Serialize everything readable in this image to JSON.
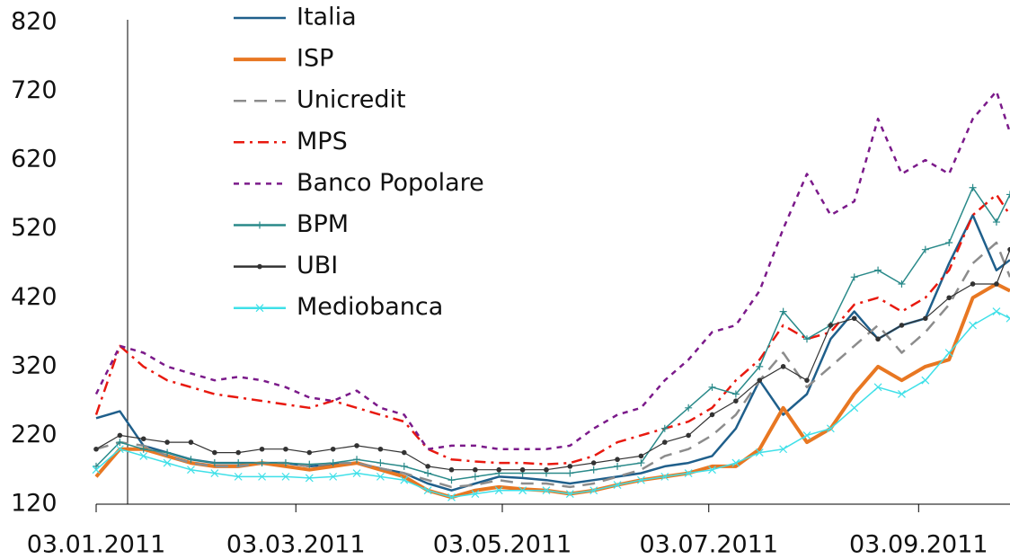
{
  "chart_data": {
    "type": "line",
    "x": [
      "03.01.2011",
      "10.01.2011",
      "17.01.2011",
      "24.01.2011",
      "31.01.2011",
      "07.02.2011",
      "14.02.2011",
      "21.02.2011",
      "28.02.2011",
      "07.03.2011",
      "14.03.2011",
      "21.03.2011",
      "28.03.2011",
      "04.04.2011",
      "11.04.2011",
      "18.04.2011",
      "25.04.2011",
      "02.05.2011",
      "09.05.2011",
      "16.05.2011",
      "23.05.2011",
      "30.05.2011",
      "06.06.2011",
      "13.06.2011",
      "20.06.2011",
      "27.06.2011",
      "04.07.2011",
      "11.07.2011",
      "18.07.2011",
      "25.07.2011",
      "01.08.2011",
      "08.08.2011",
      "15.08.2011",
      "22.08.2011",
      "29.08.2011",
      "05.09.2011",
      "12.09.2011",
      "19.09.2011",
      "26.09.2011",
      "30.09.2011"
    ],
    "xlim": [
      "03.01.2011",
      "30.09.2011"
    ],
    "xticks": [
      "03.01.2011",
      "03.03.2011",
      "03.05.2011",
      "03.07.2011",
      "03.09.2011"
    ],
    "ylim": [
      120,
      820
    ],
    "yticks": [
      120,
      220,
      320,
      420,
      520,
      620,
      720,
      820
    ],
    "legend": "top",
    "series": [
      {
        "name": "Italia",
        "color": "#1f5f8b",
        "style": "solid",
        "values": [
          245,
          255,
          205,
          195,
          185,
          180,
          180,
          180,
          180,
          175,
          178,
          180,
          172,
          165,
          150,
          140,
          150,
          160,
          158,
          155,
          150,
          155,
          160,
          165,
          175,
          180,
          190,
          230,
          300,
          250,
          280,
          360,
          400,
          360,
          380,
          390,
          470,
          540,
          460,
          475
        ]
      },
      {
        "name": "ISP",
        "color": "#e87722",
        "style": "solid",
        "values": [
          160,
          200,
          200,
          190,
          180,
          175,
          175,
          180,
          175,
          170,
          175,
          180,
          170,
          160,
          140,
          130,
          140,
          145,
          142,
          140,
          135,
          140,
          148,
          155,
          160,
          165,
          175,
          175,
          200,
          260,
          210,
          230,
          280,
          320,
          300,
          320,
          330,
          420,
          440,
          430
        ]
      },
      {
        "name": "Unicredit",
        "color": "#8c8c8c",
        "style": "dashed",
        "values": [
          200,
          210,
          205,
          190,
          180,
          175,
          175,
          180,
          180,
          175,
          180,
          180,
          172,
          165,
          155,
          145,
          148,
          155,
          150,
          150,
          145,
          150,
          160,
          170,
          190,
          200,
          220,
          250,
          300,
          340,
          290,
          320,
          350,
          380,
          340,
          370,
          410,
          470,
          500,
          450
        ]
      },
      {
        "name": "MPS",
        "color": "#e8190f",
        "style": "dash-dot",
        "values": [
          250,
          350,
          320,
          300,
          290,
          280,
          275,
          270,
          265,
          260,
          270,
          260,
          250,
          240,
          200,
          185,
          182,
          180,
          180,
          178,
          180,
          190,
          210,
          220,
          230,
          240,
          260,
          300,
          330,
          380,
          360,
          370,
          410,
          420,
          400,
          420,
          460,
          540,
          570,
          540
        ]
      },
      {
        "name": "Banco Popolare",
        "color": "#7b1a8a",
        "style": "dotted",
        "values": [
          280,
          350,
          340,
          320,
          310,
          300,
          305,
          300,
          290,
          275,
          270,
          285,
          260,
          250,
          200,
          205,
          205,
          200,
          200,
          200,
          205,
          230,
          250,
          260,
          300,
          330,
          370,
          380,
          430,
          520,
          600,
          540,
          560,
          680,
          600,
          620,
          600,
          680,
          720,
          660
        ]
      },
      {
        "name": "BPM",
        "color": "#2a8a8a",
        "style": "solid",
        "marker": "plus",
        "values": [
          175,
          210,
          200,
          195,
          185,
          180,
          180,
          180,
          180,
          178,
          180,
          185,
          180,
          175,
          165,
          155,
          160,
          165,
          165,
          165,
          165,
          170,
          175,
          180,
          230,
          260,
          290,
          280,
          320,
          400,
          360,
          380,
          450,
          460,
          440,
          490,
          500,
          580,
          530,
          570
        ]
      },
      {
        "name": "UBI",
        "color": "#333333",
        "style": "solid",
        "marker": "dot",
        "values": [
          200,
          220,
          215,
          210,
          210,
          195,
          195,
          200,
          200,
          195,
          200,
          205,
          200,
          195,
          175,
          170,
          170,
          170,
          170,
          170,
          175,
          180,
          185,
          190,
          210,
          220,
          250,
          270,
          300,
          320,
          300,
          380,
          390,
          360,
          380,
          390,
          420,
          440,
          440,
          490
        ]
      },
      {
        "name": "Mediobanca",
        "color": "#3fe0e8",
        "style": "solid",
        "marker": "cross",
        "values": [
          170,
          200,
          190,
          180,
          170,
          165,
          160,
          160,
          160,
          158,
          160,
          165,
          160,
          155,
          140,
          130,
          135,
          140,
          140,
          140,
          135,
          140,
          148,
          155,
          160,
          165,
          170,
          180,
          195,
          200,
          220,
          230,
          260,
          290,
          280,
          300,
          340,
          380,
          400,
          390
        ]
      }
    ]
  }
}
